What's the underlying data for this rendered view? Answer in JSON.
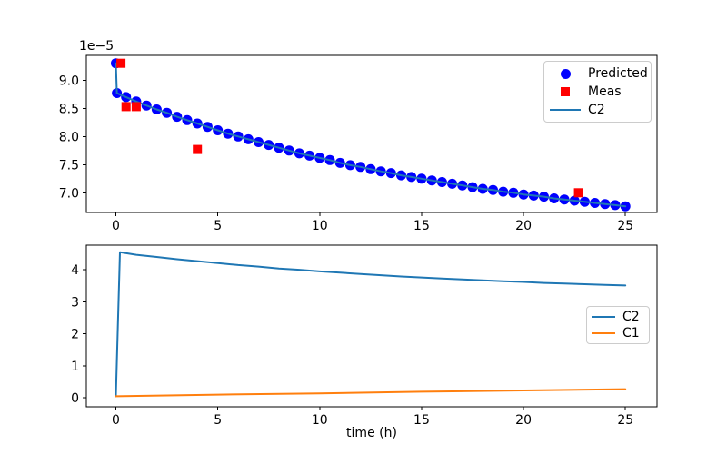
{
  "window": {
    "background": "#ffffff"
  },
  "colors": {
    "predicted_marker": "#0000ff",
    "measured_marker": "#ff0000",
    "c2_line": "#1f77b4",
    "c1_line": "#ff7f0e",
    "axis": "#000000",
    "legend_border": "#cccccc"
  },
  "chart_data": [
    {
      "type": "scatter",
      "title": "",
      "xlabel": "",
      "ylabel": "",
      "offset_label": "1e−5",
      "xlim": [
        -1.45,
        26.55
      ],
      "ylim": [
        6.65,
        9.44
      ],
      "grid": false,
      "x_tick_labels": [
        "0",
        "5",
        "10",
        "15",
        "20",
        "25"
      ],
      "x_tick_values": [
        0,
        5,
        10,
        15,
        20,
        25
      ],
      "y_tick_labels": [
        "7.0",
        "7.5",
        "8.0",
        "8.5",
        "9.0"
      ],
      "y_tick_values": [
        7.0,
        7.5,
        8.0,
        8.5,
        9.0
      ],
      "legend_position": "upper right",
      "legend": [
        {
          "label": "Predicted",
          "symbol": "circle",
          "color": "#0000ff"
        },
        {
          "label": "Meas",
          "symbol": "square",
          "color": "#ff0000"
        },
        {
          "label": "C2",
          "symbol": "line",
          "color": "#1f77b4"
        }
      ],
      "series": [
        {
          "name": "Predicted",
          "draw": "markers+line",
          "marker": "circle",
          "marker_color": "#0000ff",
          "line_color": "#1f77b4",
          "x": [
            0,
            0.05,
            0.5,
            1,
            1.5,
            2,
            2.5,
            3,
            3.5,
            4,
            4.5,
            5,
            5.5,
            6,
            6.5,
            7,
            7.5,
            8,
            8.5,
            9,
            9.5,
            10,
            10.5,
            11,
            11.5,
            12,
            12.5,
            13,
            13.5,
            14,
            14.5,
            15,
            15.5,
            16,
            16.5,
            17,
            17.5,
            18,
            18.5,
            19,
            19.5,
            20,
            20.5,
            21,
            21.5,
            22,
            22.5,
            23,
            23.5,
            24,
            24.5,
            25
          ],
          "y": [
            9.3,
            8.77,
            8.7,
            8.62,
            8.55,
            8.48,
            8.42,
            8.35,
            8.29,
            8.23,
            8.17,
            8.11,
            8.05,
            8.0,
            7.95,
            7.9,
            7.85,
            7.8,
            7.75,
            7.7,
            7.66,
            7.62,
            7.58,
            7.53,
            7.49,
            7.46,
            7.42,
            7.38,
            7.35,
            7.31,
            7.28,
            7.25,
            7.22,
            7.19,
            7.16,
            7.13,
            7.1,
            7.07,
            7.05,
            7.02,
            7.0,
            6.97,
            6.95,
            6.93,
            6.9,
            6.88,
            6.86,
            6.84,
            6.82,
            6.8,
            6.78,
            6.76
          ]
        },
        {
          "name": "Meas",
          "draw": "markers",
          "marker": "square",
          "marker_color": "#ff0000",
          "x": [
            0.25,
            0.5,
            1.0,
            4.0,
            22.7
          ],
          "y": [
            9.3,
            8.53,
            8.53,
            7.77,
            7.0
          ]
        }
      ]
    },
    {
      "type": "line",
      "title": "",
      "xlabel": "time (h)",
      "ylabel": "",
      "xlim": [
        -1.45,
        26.55
      ],
      "ylim": [
        -0.28,
        4.77
      ],
      "grid": false,
      "x_tick_labels": [
        "0",
        "5",
        "10",
        "15",
        "20",
        "25"
      ],
      "x_tick_values": [
        0,
        5,
        10,
        15,
        20,
        25
      ],
      "y_tick_labels": [
        "0",
        "1",
        "2",
        "3",
        "4"
      ],
      "y_tick_values": [
        0,
        1,
        2,
        3,
        4
      ],
      "legend_position": "center right",
      "legend": [
        {
          "label": "C2",
          "symbol": "line",
          "color": "#1f77b4"
        },
        {
          "label": "C1",
          "symbol": "line",
          "color": "#ff7f0e"
        }
      ],
      "series": [
        {
          "name": "C2",
          "draw": "line",
          "line_color": "#1f77b4",
          "x": [
            0,
            0.2,
            1,
            2,
            3,
            4,
            5,
            6,
            7,
            8,
            9,
            10,
            11,
            12,
            13,
            14,
            15,
            16,
            17,
            18,
            19,
            20,
            21,
            22,
            23,
            24,
            25
          ],
          "y": [
            0.05,
            4.55,
            4.47,
            4.4,
            4.33,
            4.27,
            4.21,
            4.15,
            4.1,
            4.04,
            4.0,
            3.95,
            3.91,
            3.87,
            3.83,
            3.79,
            3.76,
            3.73,
            3.7,
            3.67,
            3.64,
            3.62,
            3.59,
            3.57,
            3.55,
            3.53,
            3.51
          ]
        },
        {
          "name": "C1",
          "draw": "line",
          "line_color": "#ff7f0e",
          "x": [
            0,
            5,
            10,
            15,
            20,
            25
          ],
          "y": [
            0.05,
            0.1,
            0.14,
            0.19,
            0.23,
            0.27
          ]
        }
      ]
    }
  ]
}
